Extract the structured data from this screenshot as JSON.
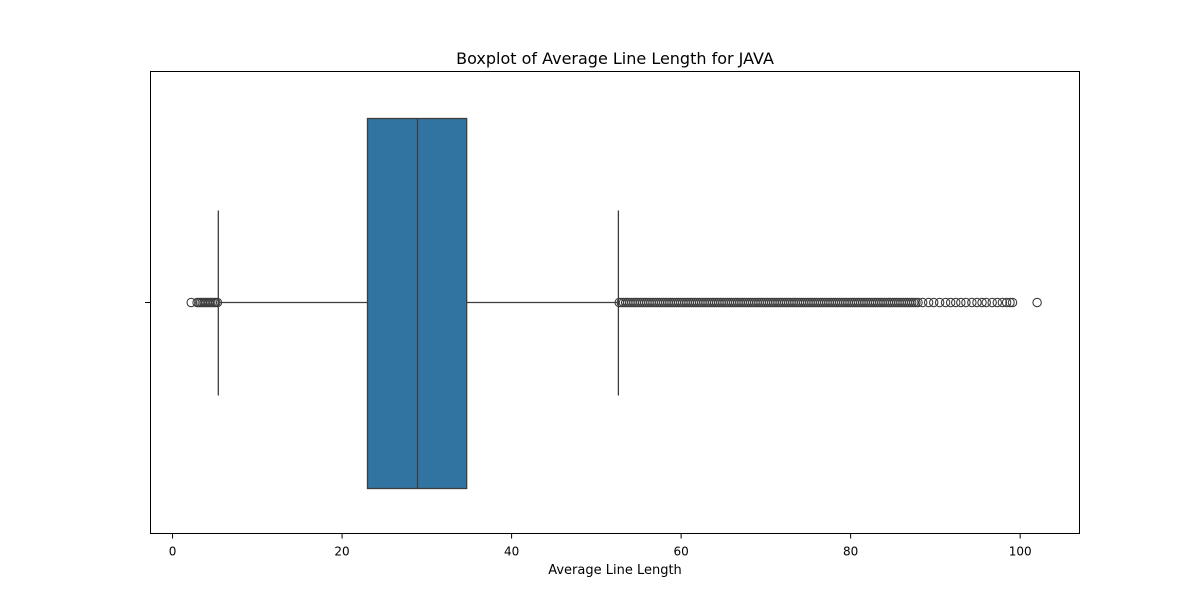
{
  "chart_data": {
    "type": "box",
    "orientation": "horizontal",
    "title": "Boxplot of Average Line Length for JAVA",
    "xlabel": "Average Line Length",
    "ylabel": "",
    "xlim": [
      -2.6,
      107.0
    ],
    "xticks": [
      0,
      20,
      40,
      60,
      80,
      100
    ],
    "box": {
      "whisker_low": 5.4,
      "q1": 23.0,
      "median": 28.9,
      "q3": 34.7,
      "whisker_high": 52.6
    },
    "outliers_low": [
      2.2,
      2.9,
      3.1,
      3.3,
      3.5,
      3.7,
      3.9,
      4.1,
      4.3,
      4.5,
      4.7,
      4.9,
      5.1,
      5.3
    ],
    "outliers_high_dense_range": [
      52.7,
      88.0
    ],
    "outliers_high_sparse": [
      88.5,
      89.2,
      89.8,
      90.5,
      91.2,
      91.8,
      92.4,
      93.0,
      93.6,
      94.3,
      94.9,
      95.5,
      96.0,
      96.7,
      97.3,
      97.9,
      98.4,
      98.8,
      99.1,
      102.0
    ],
    "box_color": "#3274a1",
    "line_color": "#3d3d3d",
    "grid": false
  }
}
